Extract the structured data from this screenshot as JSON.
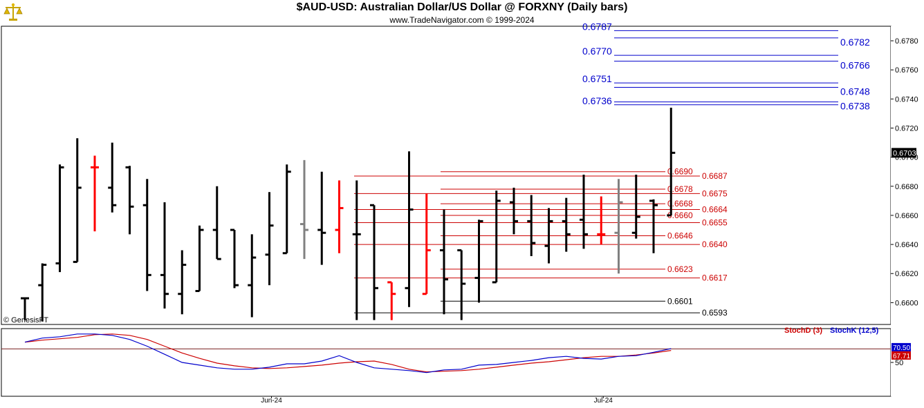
{
  "header": {
    "title": "$AUD-USD:  Australian Dollar/US Dollar @ FORXNY  (Daily bars)",
    "subtitle": "www.TradeNavigator.com © 1999-2024",
    "copyright_watermark": "© GenesisFT",
    "logo_icon": "scales-of-justice-icon"
  },
  "chart_data": [
    {
      "type": "ohlc",
      "title": "$AUD-USD:  Australian Dollar/US Dollar @ FORXNY  (Daily bars)",
      "ylim": [
        0.6585,
        0.679
      ],
      "yticks": [
        "0.6780",
        "0.6760",
        "0.6740",
        "0.6720",
        "0.6700",
        "0.6680",
        "0.6660",
        "0.6640",
        "0.6620",
        "0.6600"
      ],
      "xticks": [
        {
          "label": "Jun-24",
          "index": 14
        },
        {
          "label": "Jul-24",
          "index": 33
        }
      ],
      "last_price": "0.6703",
      "bars": [
        {
          "o": 0.6603,
          "h": 0.6603,
          "l": 0.6588,
          "c": 0.6603,
          "color": "#000000"
        },
        {
          "o": 0.6612,
          "h": 0.6627,
          "l": 0.6587,
          "c": 0.6626,
          "color": "#000000"
        },
        {
          "o": 0.6627,
          "h": 0.6695,
          "l": 0.6621,
          "c": 0.6693,
          "color": "#000000"
        },
        {
          "o": 0.6628,
          "h": 0.6713,
          "l": 0.6628,
          "c": 0.6679,
          "color": "#000000"
        },
        {
          "o": 0.6693,
          "h": 0.6701,
          "l": 0.6649,
          "c": 0.6693,
          "color": "#ff0000"
        },
        {
          "o": 0.6679,
          "h": 0.671,
          "l": 0.6662,
          "c": 0.6667,
          "color": "#000000"
        },
        {
          "o": 0.6693,
          "h": 0.6694,
          "l": 0.6647,
          "c": 0.6666,
          "color": "#000000"
        },
        {
          "o": 0.6667,
          "h": 0.6685,
          "l": 0.6608,
          "c": 0.6619,
          "color": "#000000"
        },
        {
          "o": 0.6619,
          "h": 0.6669,
          "l": 0.6596,
          "c": 0.6606,
          "color": "#000000"
        },
        {
          "o": 0.6606,
          "h": 0.6636,
          "l": 0.6592,
          "c": 0.6626,
          "color": "#000000"
        },
        {
          "o": 0.6608,
          "h": 0.6653,
          "l": 0.6608,
          "c": 0.665,
          "color": "#000000"
        },
        {
          "o": 0.665,
          "h": 0.668,
          "l": 0.663,
          "c": 0.663,
          "color": "#000000"
        },
        {
          "o": 0.665,
          "h": 0.665,
          "l": 0.661,
          "c": 0.6612,
          "color": "#000000"
        },
        {
          "o": 0.6612,
          "h": 0.6647,
          "l": 0.659,
          "c": 0.6631,
          "color": "#000000"
        },
        {
          "o": 0.6633,
          "h": 0.6676,
          "l": 0.6612,
          "c": 0.6653,
          "color": "#000000"
        },
        {
          "o": 0.6634,
          "h": 0.6695,
          "l": 0.6634,
          "c": 0.669,
          "color": "#000000"
        },
        {
          "o": 0.6654,
          "h": 0.6698,
          "l": 0.663,
          "c": 0.665,
          "color": "#808080"
        },
        {
          "o": 0.665,
          "h": 0.669,
          "l": 0.6626,
          "c": 0.6648,
          "color": "#000000"
        },
        {
          "o": 0.665,
          "h": 0.6684,
          "l": 0.6634,
          "c": 0.6665,
          "color": "#ff0000"
        },
        {
          "o": 0.6647,
          "h": 0.6684,
          "l": 0.6588,
          "c": 0.6647,
          "color": "#000000"
        },
        {
          "o": 0.6667,
          "h": 0.6667,
          "l": 0.6588,
          "c": 0.661,
          "color": "#000000"
        },
        {
          "o": 0.6614,
          "h": 0.6614,
          "l": 0.6588,
          "c": 0.6606,
          "color": "#ff0000"
        },
        {
          "o": 0.661,
          "h": 0.6704,
          "l": 0.6597,
          "c": 0.6664,
          "color": "#000000"
        },
        {
          "o": 0.6606,
          "h": 0.6675,
          "l": 0.6606,
          "c": 0.6636,
          "color": "#ff0000"
        },
        {
          "o": 0.6636,
          "h": 0.6664,
          "l": 0.6592,
          "c": 0.6616,
          "color": "#000000"
        },
        {
          "o": 0.6636,
          "h": 0.6636,
          "l": 0.6588,
          "c": 0.6613,
          "color": "#000000"
        },
        {
          "o": 0.6617,
          "h": 0.6657,
          "l": 0.66,
          "c": 0.6656,
          "color": "#000000"
        },
        {
          "o": 0.6614,
          "h": 0.6677,
          "l": 0.6614,
          "c": 0.667,
          "color": "#000000"
        },
        {
          "o": 0.6669,
          "h": 0.6679,
          "l": 0.6647,
          "c": 0.6656,
          "color": "#000000"
        },
        {
          "o": 0.6656,
          "h": 0.6674,
          "l": 0.6632,
          "c": 0.6641,
          "color": "#000000"
        },
        {
          "o": 0.6639,
          "h": 0.6665,
          "l": 0.6627,
          "c": 0.6656,
          "color": "#000000"
        },
        {
          "o": 0.6656,
          "h": 0.6672,
          "l": 0.6635,
          "c": 0.6647,
          "color": "#000000"
        },
        {
          "o": 0.6657,
          "h": 0.6688,
          "l": 0.6637,
          "c": 0.6647,
          "color": "#000000"
        },
        {
          "o": 0.6647,
          "h": 0.6673,
          "l": 0.664,
          "c": 0.6647,
          "color": "#ff0000"
        },
        {
          "o": 0.6648,
          "h": 0.6685,
          "l": 0.662,
          "c": 0.6669,
          "color": "#808080"
        },
        {
          "o": 0.6648,
          "h": 0.6688,
          "l": 0.6644,
          "c": 0.6659,
          "color": "#000000"
        },
        {
          "o": 0.667,
          "h": 0.6671,
          "l": 0.6634,
          "c": 0.6667,
          "color": "#000000"
        },
        {
          "o": 0.666,
          "h": 0.6734,
          "l": 0.666,
          "c": 0.6703,
          "color": "#000000"
        }
      ],
      "projection_lines_blue": [
        {
          "value": 0.6787,
          "label": "0.6787",
          "side": "left"
        },
        {
          "value": 0.6782,
          "label": "0.6782",
          "side": "right"
        },
        {
          "value": 0.677,
          "label": "0.6770",
          "side": "left"
        },
        {
          "value": 0.6766,
          "label": "0.6766",
          "side": "right"
        },
        {
          "value": 0.6751,
          "label": "0.6751",
          "side": "left"
        },
        {
          "value": 0.6748,
          "label": "0.6748",
          "side": "right"
        },
        {
          "value": 0.6736,
          "label": "0.6736",
          "side": "left"
        },
        {
          "value": 0.6738,
          "label": "0.6738",
          "side": "right"
        }
      ],
      "support_lines_red": [
        {
          "value": 0.669,
          "label": "0.6690",
          "start_index": 24
        },
        {
          "value": 0.6687,
          "label": "0.6687",
          "start_index": 20
        },
        {
          "value": 0.6678,
          "label": "0.6678",
          "start_index": 24
        },
        {
          "value": 0.6675,
          "label": "0.6675",
          "start_index": 20
        },
        {
          "value": 0.6668,
          "label": "0.6668",
          "start_index": 24
        },
        {
          "value": 0.6664,
          "label": "0.6664",
          "start_index": 20
        },
        {
          "value": 0.666,
          "label": "0.6660",
          "start_index": 24
        },
        {
          "value": 0.6655,
          "label": "0.6655",
          "start_index": 20
        },
        {
          "value": 0.6646,
          "label": "0.6646",
          "start_index": 24
        },
        {
          "value": 0.664,
          "label": "0.6640",
          "start_index": 20
        },
        {
          "value": 0.6623,
          "label": "0.6623",
          "start_index": 24
        },
        {
          "value": 0.6617,
          "label": "0.6617",
          "start_index": 20
        }
      ],
      "support_lines_black": [
        {
          "value": 0.6601,
          "label": "0.6601",
          "start_index": 24
        },
        {
          "value": 0.6593,
          "label": "0.6593",
          "start_index": 20
        }
      ]
    },
    {
      "type": "line",
      "legend": [
        {
          "name": "StochD (3)",
          "color": "#cc0000"
        },
        {
          "name": "StochK (12,5)",
          "color": "#0000cc"
        }
      ],
      "ylim": [
        0,
        100
      ],
      "yticks": [
        "50"
      ],
      "reference_level": 70,
      "last_values": {
        "k": "70.50",
        "d": "67.71"
      },
      "series": [
        {
          "name": "StochD (3)",
          "color": "#cc0000",
          "values": [
            80,
            83,
            85,
            87,
            91,
            92,
            90,
            84,
            74,
            64,
            56,
            49,
            45,
            42,
            41,
            42,
            44,
            46,
            49,
            51,
            52,
            47,
            40,
            36,
            37,
            38,
            40,
            43,
            46,
            49,
            51,
            54,
            57,
            59,
            59,
            61,
            64,
            67.71
          ]
        },
        {
          "name": "StochK (12,5)",
          "color": "#0000cc",
          "values": [
            80,
            86,
            88,
            92,
            92,
            90,
            84,
            74,
            62,
            50,
            46,
            42,
            40,
            40,
            43,
            48,
            48,
            52,
            60,
            50,
            42,
            40,
            38,
            35,
            39,
            40,
            46,
            47,
            50,
            53,
            57,
            59,
            56,
            55,
            59,
            60,
            65,
            70.5
          ]
        }
      ]
    }
  ]
}
